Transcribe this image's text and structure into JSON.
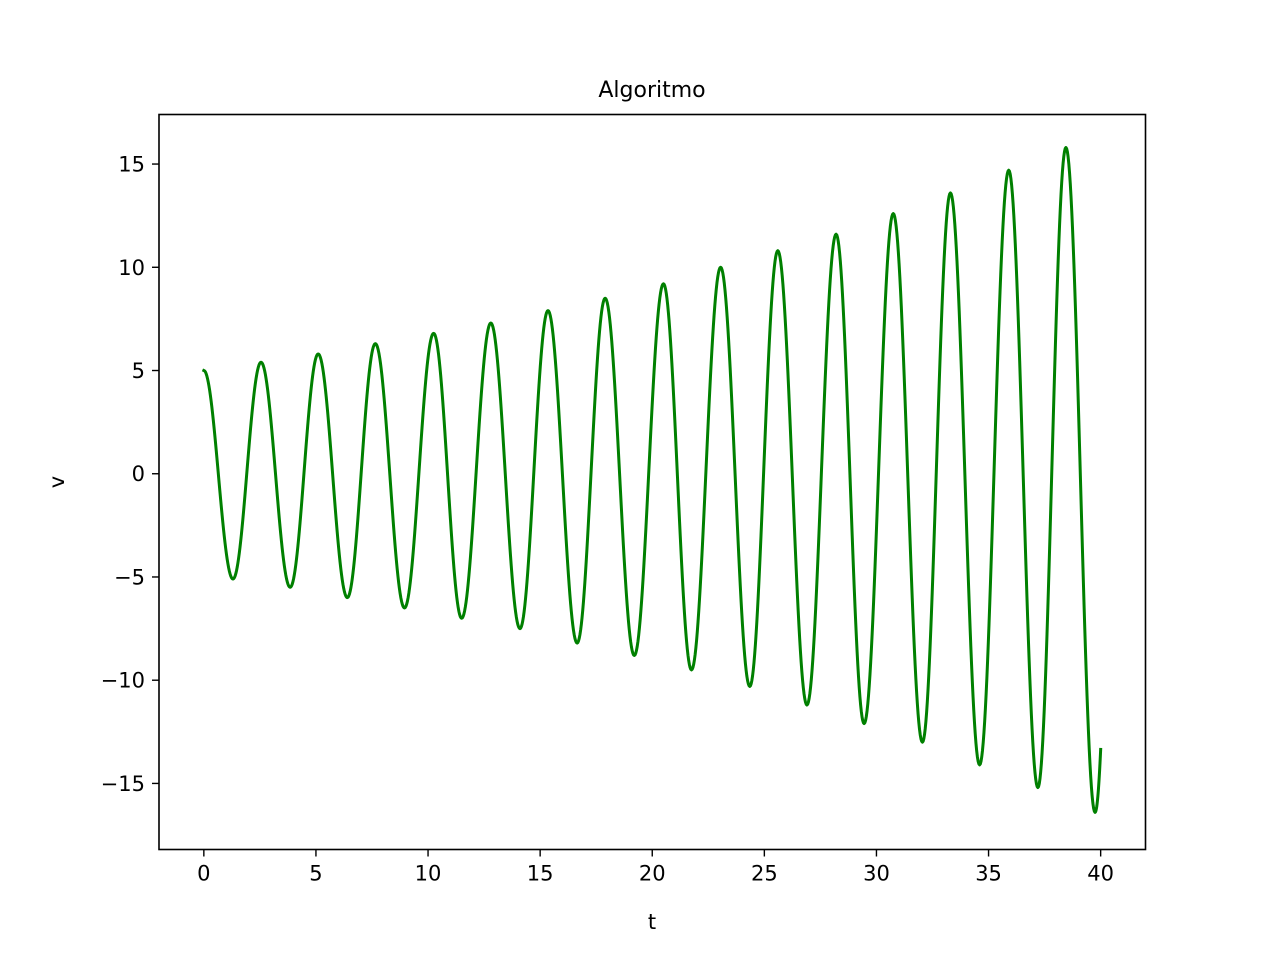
{
  "chart_data": {
    "type": "line",
    "title": "Algoritmo",
    "xlabel": "t",
    "ylabel": "v",
    "xlim": [
      -2,
      42
    ],
    "ylim": [
      -18.2,
      17.4
    ],
    "xticks": [
      0,
      5,
      10,
      15,
      20,
      25,
      30,
      35,
      40
    ],
    "xtick_labels": [
      "0",
      "5",
      "10",
      "15",
      "20",
      "25",
      "30",
      "35",
      "40"
    ],
    "yticks": [
      -15,
      -10,
      -5,
      0,
      5,
      10,
      15
    ],
    "ytick_labels": [
      "−15",
      "−10",
      "−5",
      "0",
      "5",
      "10",
      "15"
    ],
    "grid": false,
    "legend": "none",
    "series": [
      {
        "color": "#008000",
        "extrema": [
          {
            "t": 0.0,
            "v": 5.0
          },
          {
            "t": 1.3,
            "v": -5.1
          },
          {
            "t": 2.55,
            "v": 5.4
          },
          {
            "t": 3.85,
            "v": -5.5
          },
          {
            "t": 5.1,
            "v": 5.8
          },
          {
            "t": 6.4,
            "v": -6.0
          },
          {
            "t": 7.65,
            "v": 6.3
          },
          {
            "t": 8.95,
            "v": -6.5
          },
          {
            "t": 10.25,
            "v": 6.8
          },
          {
            "t": 11.5,
            "v": -7.0
          },
          {
            "t": 12.8,
            "v": 7.3
          },
          {
            "t": 14.1,
            "v": -7.5
          },
          {
            "t": 15.35,
            "v": 7.9
          },
          {
            "t": 16.65,
            "v": -8.2
          },
          {
            "t": 17.9,
            "v": 8.5
          },
          {
            "t": 19.2,
            "v": -8.8
          },
          {
            "t": 20.5,
            "v": 9.2
          },
          {
            "t": 21.75,
            "v": -9.5
          },
          {
            "t": 23.05,
            "v": 10.0
          },
          {
            "t": 24.35,
            "v": -10.3
          },
          {
            "t": 25.6,
            "v": 10.8
          },
          {
            "t": 26.9,
            "v": -11.2
          },
          {
            "t": 28.2,
            "v": 11.6
          },
          {
            "t": 29.45,
            "v": -12.1
          },
          {
            "t": 30.75,
            "v": 12.6
          },
          {
            "t": 32.05,
            "v": -13.0
          },
          {
            "t": 33.3,
            "v": 13.6
          },
          {
            "t": 34.6,
            "v": -14.1
          },
          {
            "t": 35.9,
            "v": 14.7
          },
          {
            "t": 37.2,
            "v": -15.2
          },
          {
            "t": 38.45,
            "v": 15.8
          },
          {
            "t": 39.75,
            "v": -16.4
          }
        ],
        "end": {
          "t": 40.0,
          "v": -14.0
        }
      }
    ]
  }
}
